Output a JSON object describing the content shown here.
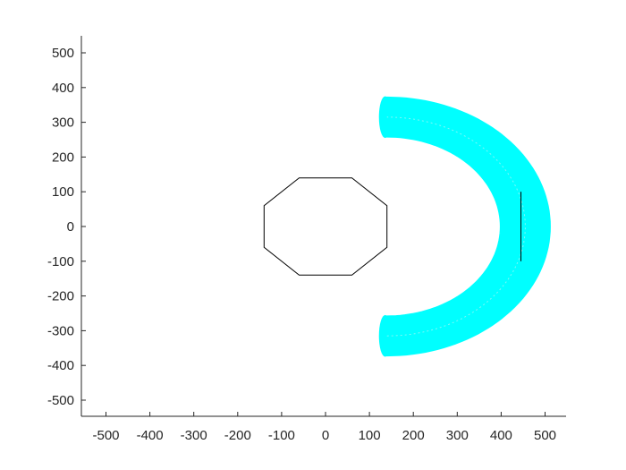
{
  "chart_data": {
    "type": "line",
    "title": "",
    "xlabel": "",
    "ylabel": "",
    "xlim": [
      -550,
      550
    ],
    "ylim": [
      -550,
      550
    ],
    "xticks": [
      -500,
      -400,
      -300,
      -200,
      -100,
      0,
      100,
      200,
      300,
      400,
      500
    ],
    "yticks": [
      -500,
      -400,
      -300,
      -200,
      -100,
      0,
      100,
      200,
      300,
      400,
      500
    ],
    "xtick_labels": [
      "-500",
      "-400",
      "-300",
      "-200",
      "-100",
      "0",
      "100",
      "200",
      "300",
      "400",
      "500"
    ],
    "ytick_labels": [
      "500",
      "400",
      "300",
      "200",
      "100",
      "0",
      "-100",
      "-200",
      "-300",
      "-400",
      "-500"
    ],
    "grid": false,
    "legend": "none",
    "series": [
      {
        "type": "polygon",
        "color": "#000000",
        "x": [
          -60,
          60,
          140,
          140,
          60,
          -60,
          -140,
          -140
        ],
        "y": [
          140,
          140,
          60,
          -60,
          -140,
          -140,
          -60,
          60
        ]
      },
      {
        "type": "arc_band",
        "color": "#00ffff",
        "center": [
          140,
          0
        ],
        "radius_inner": 260,
        "radius_outer": 370,
        "angle_start_deg": -90,
        "angle_end_deg": 90
      },
      {
        "type": "line",
        "color": "#000000",
        "x": [
          445,
          445
        ],
        "y": [
          100,
          -100
        ]
      }
    ]
  }
}
